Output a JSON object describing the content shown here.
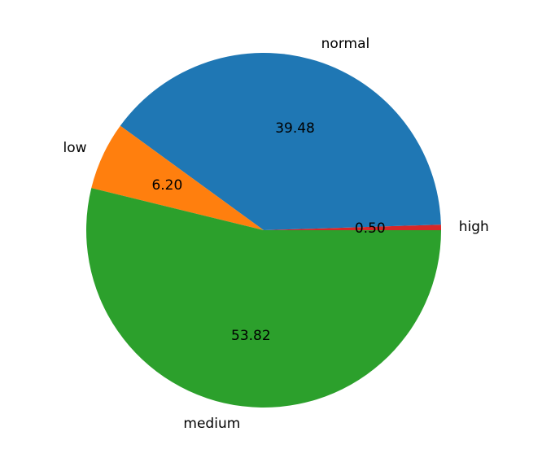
{
  "chart_data": {
    "type": "pie",
    "title": "",
    "autopct_format": "%.2f",
    "startangle_deg": 0,
    "direction": "counterclockwise",
    "slices": [
      {
        "label": "high",
        "value": 0.5,
        "pct_text": "0.50",
        "color": "#d62728"
      },
      {
        "label": "normal",
        "value": 39.48,
        "pct_text": "39.48",
        "color": "#1f77b4"
      },
      {
        "label": "low",
        "value": 6.2,
        "pct_text": "6.20",
        "color": "#ff7f0e"
      },
      {
        "label": "medium",
        "value": 53.82,
        "pct_text": "53.82",
        "color": "#2ca02c"
      }
    ],
    "legend": "none"
  }
}
